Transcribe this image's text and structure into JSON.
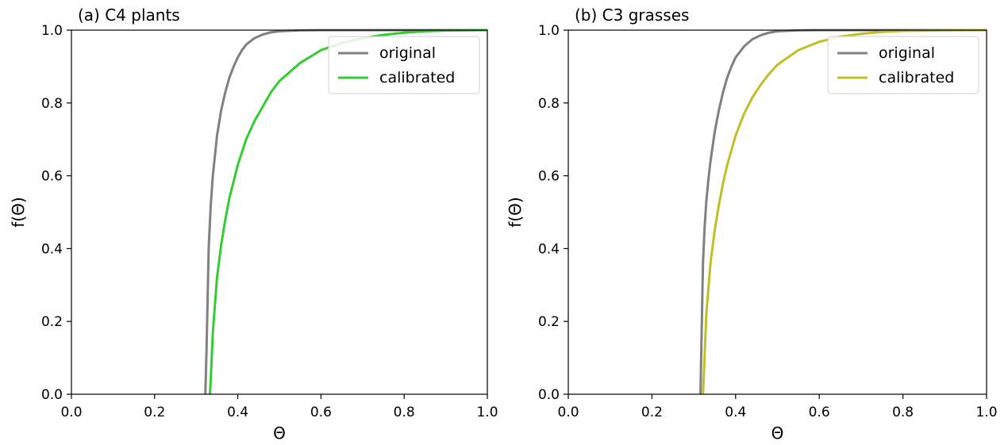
{
  "chart_data": [
    {
      "type": "line",
      "title": "(a) C4 plants",
      "xlabel": "Θ",
      "ylabel": "f(Θ)",
      "xlim": [
        0.0,
        1.0
      ],
      "ylim": [
        0.0,
        1.0
      ],
      "xticks": [
        "0.0",
        "0.2",
        "0.4",
        "0.6",
        "0.8",
        "1.0"
      ],
      "yticks": [
        "0.0",
        "0.2",
        "0.4",
        "0.6",
        "0.8",
        "1.0"
      ],
      "grid": false,
      "legend_position": "top-right",
      "series": [
        {
          "name": "original",
          "color": "#808080",
          "x": [
            0.322,
            0.325,
            0.33,
            0.335,
            0.34,
            0.35,
            0.36,
            0.37,
            0.38,
            0.39,
            0.4,
            0.41,
            0.42,
            0.44,
            0.46,
            0.48,
            0.5,
            0.55,
            0.6,
            0.7,
            0.8,
            1.0
          ],
          "y": [
            0.0,
            0.13,
            0.4,
            0.52,
            0.6,
            0.71,
            0.78,
            0.83,
            0.87,
            0.9,
            0.925,
            0.945,
            0.96,
            0.978,
            0.988,
            0.994,
            0.997,
            0.9995,
            1.0,
            1.0,
            1.0,
            1.0
          ]
        },
        {
          "name": "calibrated",
          "color": "#33cc33",
          "x": [
            0.333,
            0.335,
            0.34,
            0.35,
            0.36,
            0.37,
            0.38,
            0.4,
            0.42,
            0.44,
            0.46,
            0.48,
            0.5,
            0.55,
            0.6,
            0.65,
            0.7,
            0.75,
            0.8,
            0.85,
            0.9,
            1.0
          ],
          "y": [
            0.0,
            0.04,
            0.17,
            0.32,
            0.41,
            0.48,
            0.54,
            0.63,
            0.7,
            0.75,
            0.79,
            0.83,
            0.86,
            0.91,
            0.945,
            0.965,
            0.978,
            0.987,
            0.993,
            0.997,
            0.999,
            1.0
          ]
        }
      ]
    },
    {
      "type": "line",
      "title": "(b) C3 grasses",
      "xlabel": "Θ",
      "ylabel": "f(Θ)",
      "xlim": [
        0.0,
        1.0
      ],
      "ylim": [
        0.0,
        1.0
      ],
      "xticks": [
        "0.0",
        "0.2",
        "0.4",
        "0.6",
        "0.8",
        "1.0"
      ],
      "yticks": [
        "0.0",
        "0.2",
        "0.4",
        "0.6",
        "0.8",
        "1.0"
      ],
      "grid": false,
      "legend_position": "top-right",
      "series": [
        {
          "name": "original",
          "color": "#808080",
          "x": [
            0.316,
            0.318,
            0.322,
            0.326,
            0.33,
            0.335,
            0.34,
            0.35,
            0.36,
            0.37,
            0.38,
            0.39,
            0.4,
            0.42,
            0.44,
            0.46,
            0.48,
            0.5,
            0.55,
            0.6,
            0.8,
            1.0
          ],
          "y": [
            0.0,
            0.12,
            0.36,
            0.46,
            0.53,
            0.59,
            0.64,
            0.72,
            0.78,
            0.83,
            0.87,
            0.9,
            0.925,
            0.955,
            0.975,
            0.986,
            0.993,
            0.997,
            0.9995,
            1.0,
            1.0,
            1.0
          ]
        },
        {
          "name": "calibrated",
          "color": "#bfbf26",
          "x": [
            0.322,
            0.325,
            0.33,
            0.34,
            0.35,
            0.36,
            0.37,
            0.38,
            0.4,
            0.42,
            0.44,
            0.46,
            0.48,
            0.5,
            0.55,
            0.6,
            0.65,
            0.7,
            0.75,
            0.8,
            0.9,
            1.0
          ],
          "y": [
            0.0,
            0.08,
            0.22,
            0.36,
            0.45,
            0.52,
            0.58,
            0.63,
            0.71,
            0.77,
            0.815,
            0.85,
            0.88,
            0.905,
            0.945,
            0.968,
            0.982,
            0.99,
            0.995,
            0.998,
            0.9995,
            1.0
          ]
        }
      ]
    }
  ]
}
